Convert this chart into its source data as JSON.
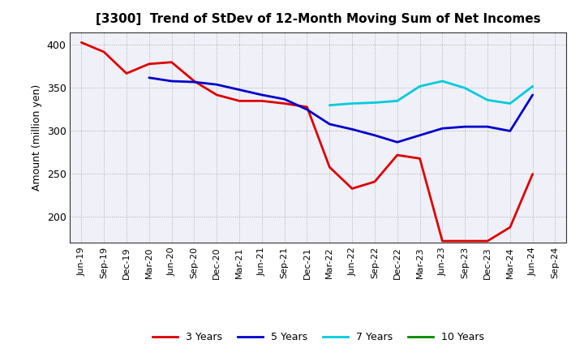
{
  "title": "[3300]  Trend of StDev of 12-Month Moving Sum of Net Incomes",
  "ylabel": "Amount (million yen)",
  "ylim": [
    170,
    415
  ],
  "yticks": [
    200,
    250,
    300,
    350,
    400
  ],
  "background_color": "#ffffff",
  "plot_bg_color": "#f0f0f8",
  "grid_color": "#999999",
  "x_labels": [
    "Jun-19",
    "Sep-19",
    "Dec-19",
    "Mar-20",
    "Jun-20",
    "Sep-20",
    "Dec-20",
    "Mar-21",
    "Jun-21",
    "Sep-21",
    "Dec-21",
    "Mar-22",
    "Jun-22",
    "Sep-22",
    "Dec-22",
    "Mar-23",
    "Jun-23",
    "Sep-23",
    "Dec-23",
    "Mar-24",
    "Jun-24",
    "Sep-24"
  ],
  "series": [
    {
      "name": "3 Years",
      "color": "#dd0000",
      "linewidth": 2.0,
      "data": [
        [
          0,
          403
        ],
        [
          1,
          392
        ],
        [
          2,
          367
        ],
        [
          3,
          378
        ],
        [
          4,
          380
        ],
        [
          5,
          358
        ],
        [
          6,
          342
        ],
        [
          7,
          335
        ],
        [
          8,
          335
        ],
        [
          9,
          332
        ],
        [
          10,
          328
        ],
        [
          11,
          258
        ],
        [
          12,
          233
        ],
        [
          13,
          241
        ],
        [
          14,
          272
        ],
        [
          15,
          268
        ],
        [
          16,
          172
        ],
        [
          17,
          172
        ],
        [
          18,
          172
        ],
        [
          19,
          188
        ],
        [
          20,
          250
        ]
      ]
    },
    {
      "name": "5 Years",
      "color": "#0000cc",
      "linewidth": 2.0,
      "data": [
        [
          3,
          362
        ],
        [
          4,
          358
        ],
        [
          5,
          357
        ],
        [
          6,
          354
        ],
        [
          7,
          348
        ],
        [
          8,
          342
        ],
        [
          9,
          337
        ],
        [
          10,
          325
        ],
        [
          11,
          308
        ],
        [
          12,
          302
        ],
        [
          13,
          295
        ],
        [
          14,
          287
        ],
        [
          15,
          295
        ],
        [
          16,
          303
        ],
        [
          17,
          305
        ],
        [
          18,
          305
        ],
        [
          19,
          300
        ],
        [
          20,
          342
        ]
      ]
    },
    {
      "name": "7 Years",
      "color": "#00ccdd",
      "linewidth": 2.0,
      "data": [
        [
          11,
          330
        ],
        [
          12,
          332
        ],
        [
          13,
          333
        ],
        [
          14,
          335
        ],
        [
          15,
          352
        ],
        [
          16,
          358
        ],
        [
          17,
          350
        ],
        [
          18,
          336
        ],
        [
          19,
          332
        ],
        [
          20,
          352
        ]
      ]
    },
    {
      "name": "10 Years",
      "color": "#008800",
      "linewidth": 2.0,
      "data": []
    }
  ],
  "legend_labels": [
    "3 Years",
    "5 Years",
    "7 Years",
    "10 Years"
  ],
  "legend_colors": [
    "#dd0000",
    "#0000cc",
    "#00ccdd",
    "#008800"
  ]
}
